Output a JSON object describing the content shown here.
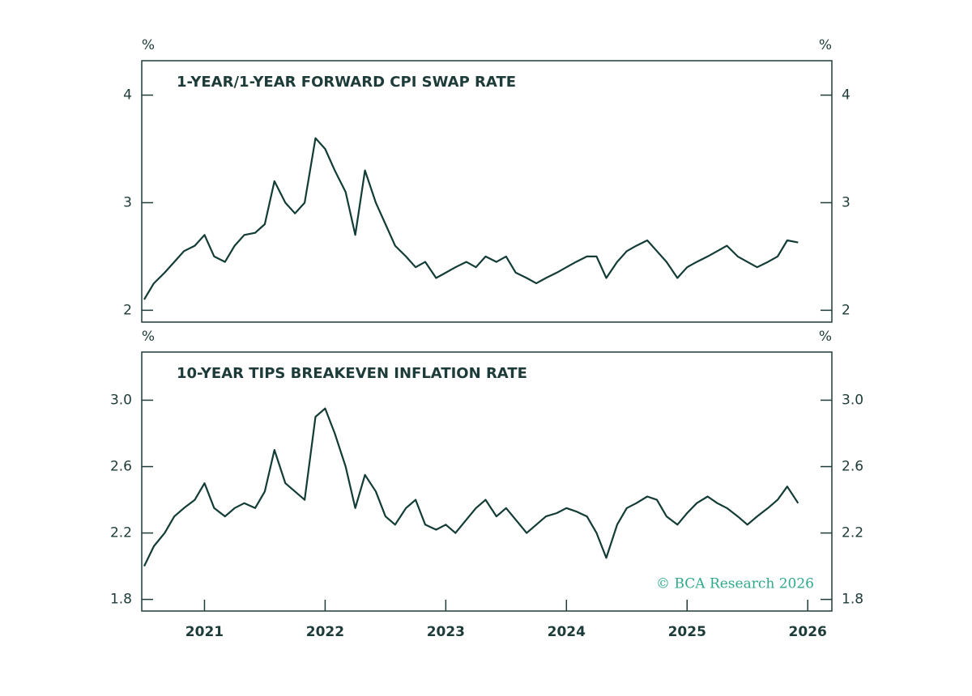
{
  "chart_data": [
    {
      "type": "line",
      "title": "1-YEAR/1-YEAR FORWARD CPI SWAP RATE",
      "y_unit": "%",
      "color": "#133c37",
      "xlim": [
        2020.48,
        2026.2
      ],
      "ylim": [
        1.89,
        4.32
      ],
      "yticks": [
        2,
        3,
        4
      ],
      "x": [
        2020.5,
        2020.58,
        2020.67,
        2020.75,
        2020.83,
        2020.92,
        2021.0,
        2021.08,
        2021.17,
        2021.25,
        2021.33,
        2021.42,
        2021.5,
        2021.58,
        2021.67,
        2021.75,
        2021.83,
        2021.92,
        2022.0,
        2022.08,
        2022.17,
        2022.25,
        2022.33,
        2022.42,
        2022.5,
        2022.58,
        2022.67,
        2022.75,
        2022.83,
        2022.92,
        2023.0,
        2023.08,
        2023.17,
        2023.25,
        2023.33,
        2023.42,
        2023.5,
        2023.58,
        2023.67,
        2023.75,
        2023.83,
        2023.92,
        2024.0,
        2024.08,
        2024.17,
        2024.25,
        2024.33,
        2024.42,
        2024.5,
        2024.58,
        2024.67,
        2024.75,
        2024.83,
        2024.92,
        2025.0,
        2025.08,
        2025.17,
        2025.25,
        2025.33,
        2025.42,
        2025.5,
        2025.58,
        2025.67,
        2025.75,
        2025.83,
        2025.92
      ],
      "values": [
        2.1,
        2.25,
        2.35,
        2.45,
        2.55,
        2.6,
        2.7,
        2.5,
        2.45,
        2.6,
        2.7,
        2.72,
        2.8,
        3.2,
        3.0,
        2.9,
        3.0,
        3.6,
        3.5,
        3.3,
        3.1,
        2.7,
        3.3,
        3.0,
        2.8,
        2.6,
        2.5,
        2.4,
        2.45,
        2.3,
        2.35,
        2.4,
        2.45,
        2.4,
        2.5,
        2.45,
        2.5,
        2.35,
        2.3,
        2.25,
        2.3,
        2.35,
        2.4,
        2.45,
        2.5,
        2.5,
        2.3,
        2.45,
        2.55,
        2.6,
        2.65,
        2.55,
        2.45,
        2.3,
        2.4,
        2.45,
        2.5,
        2.55,
        2.6,
        2.5,
        2.45,
        2.4,
        2.45,
        2.5,
        2.65,
        2.63
      ]
    },
    {
      "type": "line",
      "title": "10-YEAR TIPS BREAKEVEN INFLATION RATE",
      "y_unit": "%",
      "color": "#133c37",
      "watermark": "© BCA Research 2026",
      "xlim": [
        2020.48,
        2026.2
      ],
      "ylim": [
        1.73,
        3.29
      ],
      "yticks": [
        1.8,
        2.2,
        2.6,
        {
          "value": 3,
          "label": "3.0"
        }
      ],
      "xticks": [
        2021,
        2022,
        2023,
        2024,
        2025,
        2026
      ],
      "x": [
        2020.5,
        2020.58,
        2020.67,
        2020.75,
        2020.83,
        2020.92,
        2021.0,
        2021.08,
        2021.17,
        2021.25,
        2021.33,
        2021.42,
        2021.5,
        2021.58,
        2021.67,
        2021.75,
        2021.83,
        2021.92,
        2022.0,
        2022.08,
        2022.17,
        2022.25,
        2022.33,
        2022.42,
        2022.5,
        2022.58,
        2022.67,
        2022.75,
        2022.83,
        2022.92,
        2023.0,
        2023.08,
        2023.17,
        2023.25,
        2023.33,
        2023.42,
        2023.5,
        2023.58,
        2023.67,
        2023.75,
        2023.83,
        2023.92,
        2024.0,
        2024.08,
        2024.17,
        2024.25,
        2024.33,
        2024.42,
        2024.5,
        2024.58,
        2024.67,
        2024.75,
        2024.83,
        2024.92,
        2025.0,
        2025.08,
        2025.17,
        2025.25,
        2025.33,
        2025.42,
        2025.5,
        2025.58,
        2025.67,
        2025.75,
        2025.83,
        2025.92
      ],
      "values": [
        2.0,
        2.12,
        2.2,
        2.3,
        2.35,
        2.4,
        2.5,
        2.35,
        2.3,
        2.35,
        2.38,
        2.35,
        2.45,
        2.7,
        2.5,
        2.45,
        2.4,
        2.9,
        2.95,
        2.8,
        2.6,
        2.35,
        2.55,
        2.45,
        2.3,
        2.25,
        2.35,
        2.4,
        2.25,
        2.22,
        2.25,
        2.2,
        2.28,
        2.35,
        2.4,
        2.3,
        2.35,
        2.28,
        2.2,
        2.25,
        2.3,
        2.32,
        2.35,
        2.33,
        2.3,
        2.2,
        2.05,
        2.25,
        2.35,
        2.38,
        2.42,
        2.4,
        2.3,
        2.25,
        2.32,
        2.38,
        2.42,
        2.38,
        2.35,
        2.3,
        2.25,
        2.3,
        2.35,
        2.4,
        2.48,
        2.38
      ]
    }
  ]
}
